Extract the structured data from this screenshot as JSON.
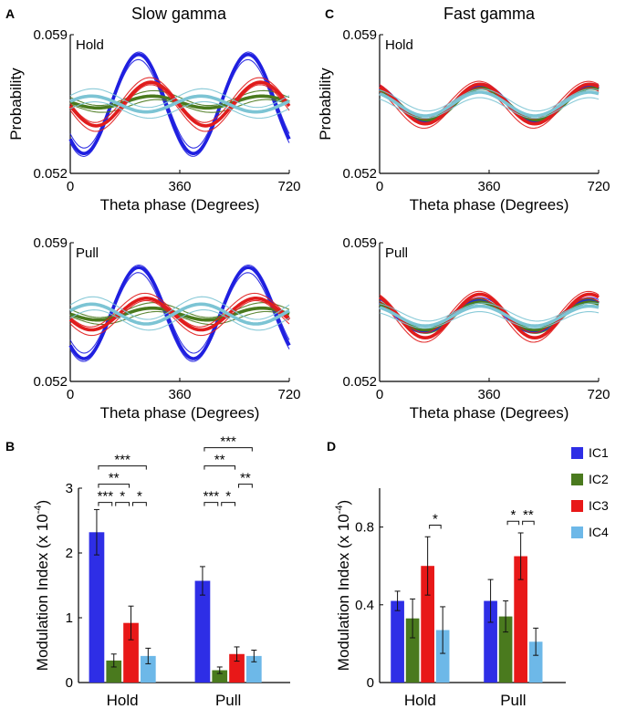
{
  "figure": {
    "panel_letters": [
      "A",
      "B",
      "C",
      "D"
    ],
    "column_titles": [
      "Slow gamma",
      "Fast gamma"
    ]
  },
  "chart_data": [
    {
      "id": "A-hold",
      "type": "line",
      "panel": "A",
      "title": "Slow gamma",
      "inset_label": "Hold",
      "xlabel": "Theta phase (Degrees)",
      "ylabel": "Probability",
      "xlim": [
        0,
        720
      ],
      "ylim": [
        0.052,
        0.059
      ],
      "xticks": [
        "0",
        "360",
        "720"
      ],
      "yticks": [
        "0.052",
        "0.059"
      ],
      "series": [
        {
          "name": "IC1",
          "color": "#1f1fe0",
          "mean": 0.0555,
          "amp": 0.0025,
          "peak_deg": 225,
          "spread": 0.0002
        },
        {
          "name": "IC2",
          "color": "#4a7a1e",
          "mean": 0.0556,
          "amp": 0.0003,
          "peak_deg": 270,
          "spread": 0.0002
        },
        {
          "name": "IC3",
          "color": "#e01c1c",
          "mean": 0.0555,
          "amp": 0.0011,
          "peak_deg": 265,
          "spread": 0.0002
        },
        {
          "name": "IC4",
          "color": "#7cc4d4",
          "mean": 0.0555,
          "amp": 0.0004,
          "peak_deg": 70,
          "spread": 0.0003
        }
      ]
    },
    {
      "id": "A-pull",
      "type": "line",
      "panel": "A",
      "inset_label": "Pull",
      "xlabel": "Theta phase (Degrees)",
      "ylabel": "",
      "xlim": [
        0,
        720
      ],
      "ylim": [
        0.052,
        0.059
      ],
      "xticks": [
        "0",
        "360",
        "720"
      ],
      "yticks": [
        "0.052",
        "0.059"
      ],
      "series": [
        {
          "name": "IC1",
          "color": "#1f1fe0",
          "mean": 0.05545,
          "amp": 0.0023,
          "peak_deg": 225,
          "spread": 0.0002
        },
        {
          "name": "IC2",
          "color": "#4a7a1e",
          "mean": 0.0554,
          "amp": 0.0003,
          "peak_deg": 270,
          "spread": 0.0002
        },
        {
          "name": "IC3",
          "color": "#e01c1c",
          "mean": 0.0554,
          "amp": 0.0008,
          "peak_deg": 250,
          "spread": 0.0002
        },
        {
          "name": "IC4",
          "color": "#7cc4d4",
          "mean": 0.0554,
          "amp": 0.0005,
          "peak_deg": 70,
          "spread": 0.0003
        }
      ]
    },
    {
      "id": "C-hold",
      "type": "line",
      "panel": "C",
      "title": "Fast gamma",
      "inset_label": "Hold",
      "xlabel": "Theta phase (Degrees)",
      "ylabel": "Probability",
      "xlim": [
        0,
        720
      ],
      "ylim": [
        0.052,
        0.059
      ],
      "xticks": [
        "0",
        "360",
        "720"
      ],
      "yticks": [
        "0.052",
        "0.059"
      ],
      "series": [
        {
          "name": "IC1",
          "color": "#1f1fe0",
          "mean": 0.0555,
          "amp": 0.0009,
          "peak_deg": 330,
          "spread": 0.0001
        },
        {
          "name": "IC2",
          "color": "#4a7a1e",
          "mean": 0.0555,
          "amp": 0.0008,
          "peak_deg": 335,
          "spread": 0.0001
        },
        {
          "name": "IC3",
          "color": "#e01c1c",
          "mean": 0.0555,
          "amp": 0.001,
          "peak_deg": 330,
          "spread": 0.0002
        },
        {
          "name": "IC4",
          "color": "#7cc4d4",
          "mean": 0.0555,
          "amp": 0.0006,
          "peak_deg": 330,
          "spread": 0.0002
        }
      ]
    },
    {
      "id": "C-pull",
      "type": "line",
      "panel": "C",
      "inset_label": "Pull",
      "xlabel": "Theta phase (Degrees)",
      "ylabel": "",
      "xlim": [
        0,
        720
      ],
      "ylim": [
        0.052,
        0.059
      ],
      "xticks": [
        "0",
        "360",
        "720"
      ],
      "yticks": [
        "0.052",
        "0.059"
      ],
      "series": [
        {
          "name": "IC1",
          "color": "#1f1fe0",
          "mean": 0.0553,
          "amp": 0.0008,
          "peak_deg": 325,
          "spread": 0.0001
        },
        {
          "name": "IC2",
          "color": "#4a7a1e",
          "mean": 0.0553,
          "amp": 0.0007,
          "peak_deg": 330,
          "spread": 0.0001
        },
        {
          "name": "IC3",
          "color": "#e01c1c",
          "mean": 0.0553,
          "amp": 0.0011,
          "peak_deg": 330,
          "spread": 0.0002
        },
        {
          "name": "IC4",
          "color": "#7cc4d4",
          "mean": 0.0553,
          "amp": 0.0005,
          "peak_deg": 330,
          "spread": 0.0002
        }
      ]
    },
    {
      "id": "B",
      "type": "bar",
      "panel": "B",
      "ylabel": "Modulation Index (x 10",
      "ylabel_exp": "-4",
      "ylabel_close": ")",
      "ylim": [
        0,
        3
      ],
      "yticks": [
        "0",
        "1",
        "2",
        "3"
      ],
      "categories": [
        "Hold",
        "Pull"
      ],
      "series": [
        {
          "name": "IC1",
          "color": "#2e2ee6",
          "values": [
            2.32,
            1.57
          ],
          "errors": [
            0.35,
            0.22
          ]
        },
        {
          "name": "IC2",
          "color": "#4a7a1e",
          "values": [
            0.34,
            0.19
          ],
          "errors": [
            0.1,
            0.05
          ]
        },
        {
          "name": "IC3",
          "color": "#e81818",
          "values": [
            0.92,
            0.44
          ],
          "errors": [
            0.26,
            0.11
          ]
        },
        {
          "name": "IC4",
          "color": "#6db8e8",
          "values": [
            0.41,
            0.41
          ],
          "errors": [
            0.12,
            0.09
          ]
        }
      ],
      "significance": [
        {
          "group": 0,
          "a": 0,
          "b": 1,
          "label": "***",
          "level": 0
        },
        {
          "group": 0,
          "a": 1,
          "b": 2,
          "label": "*",
          "level": 0
        },
        {
          "group": 0,
          "a": 2,
          "b": 3,
          "label": "*",
          "level": 0
        },
        {
          "group": 0,
          "a": 0,
          "b": 2,
          "label": "**",
          "level": 1
        },
        {
          "group": 0,
          "a": 0,
          "b": 3,
          "label": "***",
          "level": 2
        },
        {
          "group": 1,
          "a": 0,
          "b": 1,
          "label": "***",
          "level": 0
        },
        {
          "group": 1,
          "a": 1,
          "b": 2,
          "label": "*",
          "level": 0
        },
        {
          "group": 1,
          "a": 2,
          "b": 3,
          "label": "**",
          "level": 1
        },
        {
          "group": 1,
          "a": 0,
          "b": 2,
          "label": "**",
          "level": 2
        },
        {
          "group": 1,
          "a": 0,
          "b": 3,
          "label": "***",
          "level": 3
        }
      ]
    },
    {
      "id": "D",
      "type": "bar",
      "panel": "D",
      "ylabel": "Modulation Index (x 10",
      "ylabel_exp": "-4",
      "ylabel_close": ")",
      "ylim": [
        0,
        1.0
      ],
      "yticks": [
        "0",
        "0.4",
        "0.8"
      ],
      "ytick_values": [
        0,
        0.4,
        0.8
      ],
      "categories": [
        "Hold",
        "Pull"
      ],
      "series": [
        {
          "name": "IC1",
          "color": "#2e2ee6",
          "values": [
            0.42,
            0.42
          ],
          "errors": [
            0.05,
            0.11
          ]
        },
        {
          "name": "IC2",
          "color": "#4a7a1e",
          "values": [
            0.33,
            0.34
          ],
          "errors": [
            0.1,
            0.08
          ]
        },
        {
          "name": "IC3",
          "color": "#e81818",
          "values": [
            0.6,
            0.65
          ],
          "errors": [
            0.15,
            0.12
          ]
        },
        {
          "name": "IC4",
          "color": "#6db8e8",
          "values": [
            0.27,
            0.21
          ],
          "errors": [
            0.12,
            0.07
          ]
        }
      ],
      "significance": [
        {
          "group": 0,
          "a": 2,
          "b": 3,
          "label": "*",
          "level": 0
        },
        {
          "group": 1,
          "a": 1,
          "b": 2,
          "label": "*",
          "level": 0
        },
        {
          "group": 1,
          "a": 2,
          "b": 3,
          "label": "**",
          "level": 0
        }
      ]
    }
  ],
  "legend": [
    {
      "name": "IC1",
      "color": "#2e2ee6"
    },
    {
      "name": "IC2",
      "color": "#4a7a1e"
    },
    {
      "name": "IC3",
      "color": "#e81818"
    },
    {
      "name": "IC4",
      "color": "#6db8e8"
    }
  ]
}
